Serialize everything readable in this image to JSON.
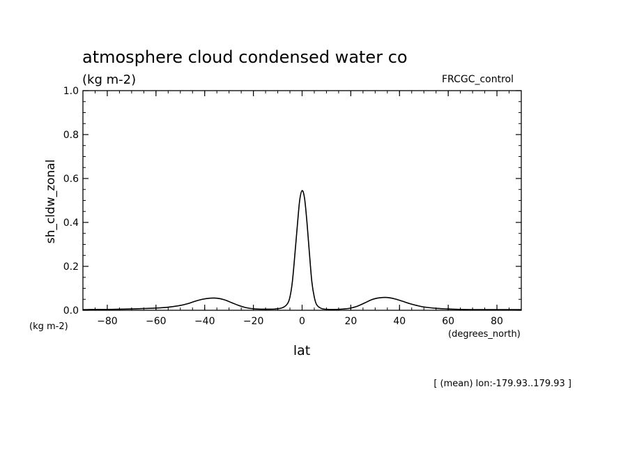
{
  "chart_data": {
    "type": "line",
    "title": "atmosphere cloud condensed water co",
    "subtitle": "(kg m-2)",
    "run_label": "FRCGC_control",
    "xlabel": "lat",
    "ylabel": "sh_cldw_zonal",
    "x_units": "(degrees_north)",
    "y_units": "(kg m-2)",
    "footer": "[ (mean) lon:-179.93..179.93 ]",
    "xlim": [
      -90,
      90
    ],
    "ylim": [
      0,
      1.0
    ],
    "x_ticks": [
      -80,
      -60,
      -40,
      -20,
      0,
      20,
      40,
      60,
      80
    ],
    "x_tick_labels": [
      "−80",
      "−60",
      "−40",
      "−20",
      "0",
      "20",
      "40",
      "60",
      "80"
    ],
    "y_ticks": [
      0,
      0.2,
      0.4,
      0.6,
      0.8,
      1.0
    ],
    "y_tick_labels": [
      "0.0",
      "0.2",
      "0.4",
      "0.6",
      "0.8",
      "1.0"
    ],
    "grid": false,
    "series": [
      {
        "x": [
          -90,
          -85,
          -80,
          -75,
          -70,
          -65,
          -60,
          -55,
          -50,
          -47,
          -44,
          -41,
          -38,
          -35,
          -32,
          -29,
          -26,
          -23,
          -20,
          -17,
          -14,
          -11,
          -8,
          -6,
          -5,
          -4,
          -3,
          -2,
          -1,
          0,
          1,
          2,
          3,
          4,
          5,
          6,
          8,
          11,
          14,
          17,
          20,
          23,
          26,
          29,
          32,
          35,
          38,
          41,
          44,
          47,
          50,
          55,
          60,
          65,
          70,
          75,
          80,
          85,
          90
        ],
        "y": [
          0.003,
          0.004,
          0.004,
          0.005,
          0.006,
          0.008,
          0.01,
          0.014,
          0.022,
          0.03,
          0.041,
          0.05,
          0.055,
          0.055,
          0.048,
          0.035,
          0.022,
          0.012,
          0.007,
          0.005,
          0.005,
          0.006,
          0.012,
          0.03,
          0.06,
          0.13,
          0.25,
          0.38,
          0.5,
          0.545,
          0.51,
          0.4,
          0.26,
          0.13,
          0.06,
          0.025,
          0.008,
          0.004,
          0.004,
          0.006,
          0.01,
          0.02,
          0.035,
          0.05,
          0.057,
          0.058,
          0.052,
          0.042,
          0.031,
          0.022,
          0.015,
          0.009,
          0.006,
          0.004,
          0.003,
          0.003,
          0.003,
          0.003,
          0.003
        ]
      }
    ]
  }
}
